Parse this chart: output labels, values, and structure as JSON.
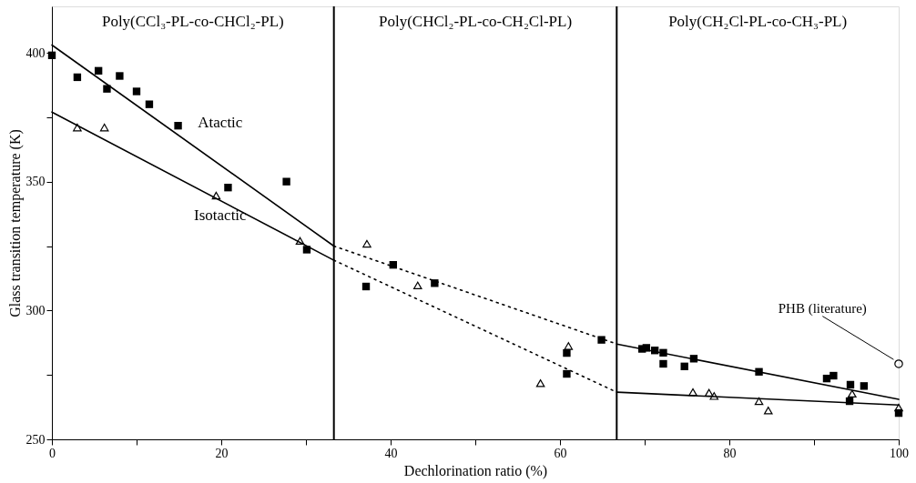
{
  "chart_data": {
    "type": "scatter",
    "xlabel": "Dechlorination ratio (%)",
    "ylabel": "Glass transition temperature (K)",
    "xlim": [
      0,
      100
    ],
    "ylim": [
      250,
      418
    ],
    "xticks": [
      0,
      {
        "value": 10,
        "label": null
      },
      20,
      {
        "value": 30,
        "label": null
      },
      40,
      {
        "value": 50,
        "label": null
      },
      60,
      {
        "value": 70,
        "label": null
      },
      80,
      {
        "value": 90,
        "label": null
      },
      100
    ],
    "yticks": [
      250,
      {
        "value": 275,
        "label": null
      },
      300,
      {
        "value": 325,
        "label": null
      },
      350,
      {
        "value": 375,
        "label": null
      },
      400
    ],
    "grid": false,
    "series": [
      {
        "marker": "square",
        "color": "#000000",
        "x": [
          0,
          3,
          5.5,
          6.5,
          8,
          10,
          11.5,
          14.9,
          20.8,
          27.7,
          30.1,
          37.1,
          40.3,
          45.2,
          60.8,
          60.8,
          64.9,
          69.7,
          70.2,
          71.2,
          72.2,
          72.2,
          74.7,
          75.8,
          83.5,
          91.5,
          92.3,
          94.2,
          94.3,
          95.9,
          100
        ],
        "values": [
          399,
          390.5,
          393,
          386,
          391,
          385,
          380,
          371.7,
          347.7,
          350,
          323.6,
          309.3,
          317.7,
          310.6,
          283.5,
          275.4,
          288.6,
          285.1,
          285.5,
          284.5,
          283.6,
          279.3,
          278.3,
          281.3,
          276.2,
          273.6,
          274.7,
          264.8,
          271.2,
          270.7,
          260.2
        ]
      },
      {
        "marker": "triangle",
        "color": "#000000",
        "x": [
          3,
          6.2,
          19.4,
          29.3,
          37.2,
          43.2,
          57.7,
          61.0,
          75.7,
          77.6,
          78.2,
          83.5,
          84.6,
          94.5,
          100
        ],
        "values": [
          371,
          371,
          344.6,
          327,
          325.9,
          309.7,
          271.8,
          286.2,
          268.3,
          268.1,
          266.8,
          264.8,
          261.2,
          267.7,
          262.3
        ]
      },
      {
        "marker": "circle",
        "color": "#000000",
        "x": [
          100
        ],
        "values": [
          279.3
        ]
      },
      {
        "type": "line",
        "line_style": "solid",
        "color": "#000000",
        "x": [
          0,
          33.3
        ],
        "values": [
          403,
          325
        ]
      },
      {
        "type": "line",
        "line_style": "dotted",
        "color": "#000000",
        "x": [
          33.3,
          66.7
        ],
        "values": [
          325,
          287
        ]
      },
      {
        "type": "line",
        "line_style": "solid",
        "color": "#000000",
        "x": [
          66.7,
          100
        ],
        "values": [
          287,
          265.5
        ]
      },
      {
        "type": "line",
        "line_style": "solid",
        "color": "#000000",
        "x": [
          0,
          33.3
        ],
        "values": [
          377,
          319.5
        ]
      },
      {
        "type": "line",
        "line_style": "dotted",
        "color": "#000000",
        "x": [
          33.3,
          66.7
        ],
        "values": [
          319.5,
          268.3
        ]
      },
      {
        "type": "line",
        "line_style": "solid",
        "color": "#000000",
        "x": [
          66.7,
          100
        ],
        "values": [
          268.3,
          263.3
        ]
      }
    ],
    "ref_lines": [
      {
        "axis": "x",
        "value": 33.3,
        "color": "#000000"
      },
      {
        "axis": "x",
        "value": 66.7,
        "color": "#000000"
      }
    ],
    "annotations": [
      "Poly(CCl₃-PL-co-CHCl₂-PL)",
      "Poly(CHCl₂-PL-co-CH₂Cl-PL)",
      "Poly(CH₂Cl-PL-co-CH₃-PL)",
      "Atactic",
      "Isotactic",
      {
        "text": "PHB (literature)",
        "x": 100,
        "y": 279.3
      }
    ]
  }
}
